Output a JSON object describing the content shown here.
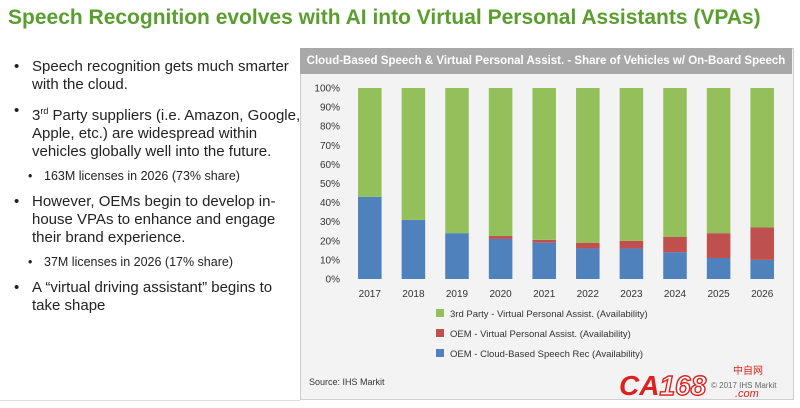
{
  "slide": {
    "title": "Speech Recognition evolves with AI into Virtual Personal Assistants (VPAs)",
    "bullet_glyph": "•",
    "bullets": [
      {
        "text": "Speech recognition gets much smarter with the cloud."
      },
      {
        "pre": "3",
        "sup": "rd",
        "post": " Party suppliers (i.e. Amazon, Google, Apple, etc.) are widespread within vehicles globally well into the future."
      },
      {
        "text": "163M licenses in 2026 (73% share)"
      },
      {
        "text": "However, OEMs begin to develop in-house VPAs to enhance and engage their brand experience."
      },
      {
        "text": "37M licenses in 2026 (17% share)"
      },
      {
        "text": "A “virtual driving assistant” begins to take shape"
      }
    ]
  },
  "chart_header": "Cloud-Based Speech & Virtual Personal Assist. - Share of Vehicles w/ On-Board Speech",
  "source": "Source: IHS Markit",
  "watermark": {
    "brand_a": "CA",
    "brand_b": "168",
    "brand_c": ".com",
    "cn": "中自网",
    "copyright": "© 2017 IHS Markit"
  },
  "colors": {
    "green": "#93c05a",
    "red": "#c0504d",
    "blue": "#4f81bd",
    "title_green": "#5a9e2f",
    "watermark_red": "#e02020"
  },
  "chart_data": {
    "type": "bar",
    "stacked": true,
    "title": "Cloud-Based Speech & Virtual Personal Assist. - Share of Vehicles w/ On-Board Speech",
    "categories": [
      "2017",
      "2018",
      "2019",
      "2020",
      "2021",
      "2022",
      "2023",
      "2024",
      "2025",
      "2026"
    ],
    "series": [
      {
        "name": "OEM - Cloud-Based Speech Rec (Availability)",
        "color": "#4f81bd",
        "values": [
          43,
          31,
          24,
          21,
          19,
          16,
          16,
          14,
          11,
          10
        ]
      },
      {
        "name": "OEM - Virtual Personal Assist. (Availability)",
        "color": "#c0504d",
        "values": [
          0,
          0,
          0,
          1.5,
          1.5,
          3,
          4,
          8,
          13,
          17
        ]
      },
      {
        "name": "3rd Party - Virtual Personal Assist. (Availability)",
        "color": "#93c05a",
        "values": [
          57,
          69,
          76,
          77.5,
          79.5,
          81,
          80,
          78,
          76,
          73
        ]
      }
    ],
    "ylim": [
      0,
      100
    ],
    "yticks": [
      "0%",
      "10%",
      "20%",
      "30%",
      "40%",
      "50%",
      "60%",
      "70%",
      "80%",
      "90%",
      "100%"
    ],
    "legend_order": [
      2,
      1,
      0
    ],
    "legend_position": "bottom",
    "grid": false
  }
}
